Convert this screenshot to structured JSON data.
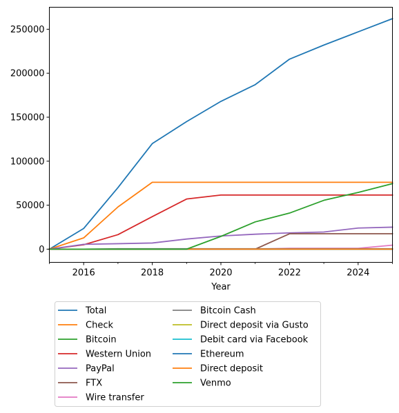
{
  "chart_data": {
    "type": "line",
    "title": "",
    "xlabel": "Year",
    "ylabel": "",
    "x": [
      2015,
      2016,
      2017,
      2018,
      2019,
      2020,
      2021,
      2022,
      2023,
      2024,
      2025
    ],
    "xlim": [
      2015,
      2025
    ],
    "ylim": [
      -15000,
      275000
    ],
    "x_ticks": [
      "2016",
      "2018",
      "2020",
      "2022",
      "2024"
    ],
    "x_minor_ticks": [
      2015,
      2017,
      2019,
      2021,
      2023,
      2025
    ],
    "y_ticks": [
      "0",
      "50000",
      "100000",
      "150000",
      "200000",
      "250000"
    ],
    "y_tick_values": [
      0,
      50000,
      100000,
      150000,
      200000,
      250000
    ],
    "grid": false,
    "legend_placement": "below",
    "legend_columns": 2,
    "series": [
      {
        "name": "Total",
        "color": "#1f77b4",
        "values": [
          0,
          23500,
          70000,
          120000,
          145000,
          168000,
          187000,
          216000,
          232000,
          247000,
          262000
        ]
      },
      {
        "name": "Check",
        "color": "#ff7f0e",
        "values": [
          0,
          12800,
          48000,
          76000,
          76000,
          76000,
          76000,
          76000,
          76000,
          76000,
          76000
        ]
      },
      {
        "name": "Bitcoin",
        "color": "#2ca02c",
        "values": [
          0,
          0,
          0,
          0,
          0,
          0,
          0,
          0,
          0,
          0,
          0
        ]
      },
      {
        "name": "Western Union",
        "color": "#d62728",
        "values": [
          0,
          5000,
          16500,
          37000,
          57000,
          61500,
          61500,
          61500,
          61500,
          61500,
          61500
        ]
      },
      {
        "name": "PayPal",
        "color": "#9467bd",
        "values": [
          0,
          5500,
          6200,
          7000,
          11500,
          15000,
          17000,
          18500,
          19500,
          24000,
          25000
        ]
      },
      {
        "name": "FTX",
        "color": "#8c564b",
        "values": [
          0,
          0,
          0,
          0,
          0,
          0,
          0,
          17500,
          17500,
          17500,
          17500
        ]
      },
      {
        "name": "Wire transfer",
        "color": "#e377c2",
        "values": [
          0,
          0,
          0,
          0,
          0,
          0,
          0,
          1000,
          1000,
          1000,
          4500
        ]
      },
      {
        "name": "Bitcoin Cash",
        "color": "#7f7f7f",
        "values": [
          0,
          0,
          500,
          500,
          500,
          500,
          500,
          500,
          500,
          500,
          500
        ]
      },
      {
        "name": "Direct deposit via Gusto",
        "color": "#bcbd22",
        "values": [
          0,
          0,
          0,
          0,
          0,
          0,
          0,
          0,
          0,
          0,
          0
        ]
      },
      {
        "name": "Debit card via Facebook",
        "color": "#17becf",
        "values": [
          0,
          0,
          0,
          0,
          0,
          0,
          0,
          0,
          0,
          0,
          0
        ]
      },
      {
        "name": "Ethereum",
        "color": "#1f77b4",
        "values": [
          0,
          0,
          0,
          0,
          0,
          0,
          0,
          0,
          0,
          0,
          0
        ]
      },
      {
        "name": "Direct deposit",
        "color": "#ff7f0e",
        "values": [
          0,
          0,
          0,
          0,
          0,
          0,
          0,
          0,
          0,
          0,
          0
        ]
      },
      {
        "name": "Venmo",
        "color": "#2ca02c",
        "values": [
          0,
          0,
          0,
          0,
          0,
          14500,
          31000,
          41000,
          55500,
          64500,
          74500
        ]
      }
    ]
  }
}
